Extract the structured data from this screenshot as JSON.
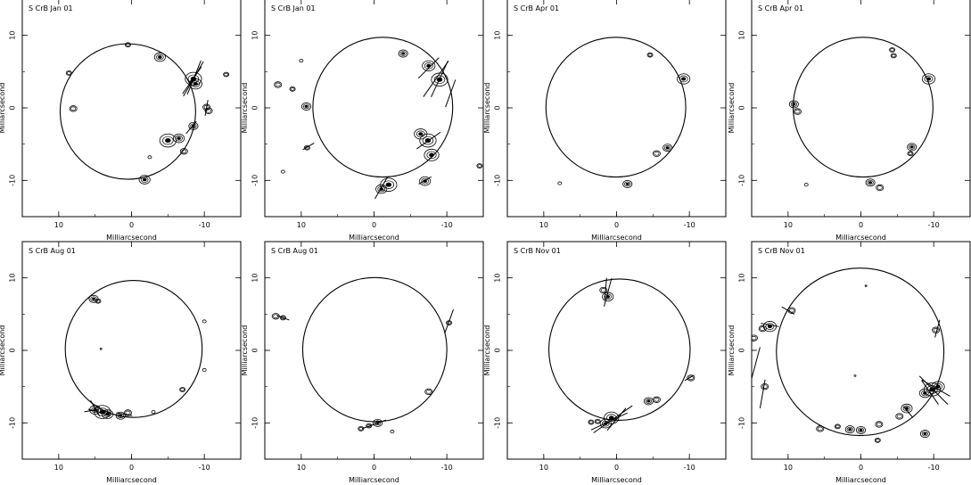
{
  "figure": {
    "layout": "2x4 grid of maser maps",
    "axis_label": "Milliarcsecond",
    "colors": {
      "ink": "#000000",
      "background": "#ffffff"
    }
  },
  "chart_data": [
    {
      "type": "scatter",
      "title": "S CrB Jan 01",
      "xlabel": "Milliarcsecond",
      "ylabel": "Milliarcsecond",
      "xlim": [
        15,
        -15
      ],
      "ylim": [
        -15,
        15
      ],
      "xticks": [
        10,
        0,
        -10
      ],
      "yticks": [
        10,
        0,
        -10
      ],
      "ring": {
        "center": [
          0.5,
          -0.5
        ],
        "radius": 9.3
      },
      "spots": [
        {
          "x": 0.5,
          "y": 8.7,
          "size": 0.3
        },
        {
          "x": 8.6,
          "y": 4.8,
          "size": 0.3
        },
        {
          "x": 8.0,
          "y": -0.1,
          "size": 0.4
        },
        {
          "x": -3.9,
          "y": 7.0,
          "size": 0.6
        },
        {
          "x": -8.5,
          "y": 4.0,
          "size": 0.9
        },
        {
          "x": -8.8,
          "y": 3.3,
          "size": 0.7
        },
        {
          "x": -10.3,
          "y": 0.1,
          "size": 0.4
        },
        {
          "x": -10.6,
          "y": -0.4,
          "size": 0.4
        },
        {
          "x": -8.5,
          "y": -2.5,
          "size": 0.5
        },
        {
          "x": -5.0,
          "y": -4.5,
          "size": 0.9
        },
        {
          "x": -6.5,
          "y": -4.2,
          "size": 0.6
        },
        {
          "x": -7.2,
          "y": -6.0,
          "size": 0.4
        },
        {
          "x": -1.8,
          "y": -9.9,
          "size": 0.6
        },
        {
          "x": -13.0,
          "y": 4.6,
          "size": 0.3
        },
        {
          "x": -2.5,
          "y": -6.8,
          "size": 0.2
        }
      ],
      "vectors": [
        {
          "x": -8.5,
          "y": 4.0,
          "pa": 150,
          "len": 5.5
        },
        {
          "x": -8.6,
          "y": 4.2,
          "pa": 158,
          "len": 5.0
        },
        {
          "x": -8.3,
          "y": 3.8,
          "pa": 145,
          "len": 4.5
        },
        {
          "x": -10.3,
          "y": 0.0,
          "pa": 170,
          "len": 2.2
        },
        {
          "x": -8.2,
          "y": -2.7,
          "pa": 140,
          "len": 2.2
        }
      ]
    },
    {
      "type": "scatter",
      "title": "S CrB Jan 01",
      "xlabel": "Milliarcsecond",
      "ylabel": "Milliarcsecond",
      "xlim": [
        15,
        -15
      ],
      "ylim": [
        -15,
        15
      ],
      "xticks": [
        10,
        0,
        -10
      ],
      "yticks": [
        10,
        0,
        -10
      ],
      "ring": {
        "center": [
          -1.2,
          0.1
        ],
        "radius": 9.6
      },
      "spots": [
        {
          "x": -4.0,
          "y": 7.5,
          "size": 0.5
        },
        {
          "x": -7.5,
          "y": 5.8,
          "size": 0.7
        },
        {
          "x": -9.0,
          "y": 3.9,
          "size": 0.9
        },
        {
          "x": 13.2,
          "y": 3.2,
          "size": 0.4
        },
        {
          "x": 11.2,
          "y": 2.6,
          "size": 0.3
        },
        {
          "x": 9.3,
          "y": 0.2,
          "size": 0.5
        },
        {
          "x": 10.0,
          "y": 6.5,
          "size": 0.2
        },
        {
          "x": -6.4,
          "y": -3.6,
          "size": 0.7
        },
        {
          "x": -7.4,
          "y": -4.5,
          "size": 0.9
        },
        {
          "x": -7.9,
          "y": -6.5,
          "size": 0.8
        },
        {
          "x": -2.0,
          "y": -10.6,
          "size": 0.9
        },
        {
          "x": -1.0,
          "y": -11.2,
          "size": 0.6
        },
        {
          "x": -7.0,
          "y": -10.1,
          "size": 0.6
        },
        {
          "x": -14.5,
          "y": -8.0,
          "size": 0.3
        },
        {
          "x": 9.2,
          "y": -5.5,
          "size": 0.3
        },
        {
          "x": 12.5,
          "y": -8.8,
          "size": 0.2
        }
      ],
      "vectors": [
        {
          "x": -8.5,
          "y": 4.0,
          "pa": 145,
          "len": 6.0
        },
        {
          "x": -9.0,
          "y": 4.0,
          "pa": 155,
          "len": 5.5
        },
        {
          "x": -7.5,
          "y": 5.5,
          "pa": 135,
          "len": 4.0
        },
        {
          "x": -10.5,
          "y": 2.0,
          "pa": 160,
          "len": 4.0
        },
        {
          "x": -7.5,
          "y": -4.5,
          "pa": 125,
          "len": 4.0
        },
        {
          "x": -1.0,
          "y": -11.0,
          "pa": 150,
          "len": 3.5
        },
        {
          "x": -7.0,
          "y": -10.0,
          "pa": 120,
          "len": 2.0
        },
        {
          "x": 9.0,
          "y": -5.3,
          "pa": 120,
          "len": 1.8
        }
      ]
    },
    {
      "type": "scatter",
      "title": "S CrB Apr 01",
      "xlabel": "Milliarcsecond",
      "ylabel": "Milliarcsecond",
      "xlim": [
        15,
        -15
      ],
      "ylim": [
        -15,
        15
      ],
      "xticks": [
        10,
        0,
        -10
      ],
      "yticks": [
        10,
        0,
        -10
      ],
      "ring": {
        "center": [
          0.1,
          0.1
        ],
        "radius": 9.6
      },
      "spots": [
        {
          "x": -4.6,
          "y": 7.3,
          "size": 0.3
        },
        {
          "x": -9.2,
          "y": 4.0,
          "size": 0.7
        },
        {
          "x": -7.0,
          "y": -5.5,
          "size": 0.5
        },
        {
          "x": -5.5,
          "y": -6.3,
          "size": 0.4
        },
        {
          "x": -1.5,
          "y": -10.5,
          "size": 0.5
        },
        {
          "x": 7.8,
          "y": -10.4,
          "size": 0.2
        }
      ],
      "vectors": []
    },
    {
      "type": "scatter",
      "title": "S CrB Apr 01",
      "xlabel": "Milliarcsecond",
      "ylabel": "Milliarcsecond",
      "xlim": [
        15,
        -15
      ],
      "ylim": [
        -15,
        15
      ],
      "xticks": [
        10,
        0,
        -10
      ],
      "yticks": [
        10,
        0,
        -10
      ],
      "ring": {
        "center": [
          -0.3,
          0.1
        ],
        "radius": 9.6
      },
      "spots": [
        {
          "x": -4.3,
          "y": 8.0,
          "size": 0.3
        },
        {
          "x": -4.5,
          "y": 7.2,
          "size": 0.3
        },
        {
          "x": -9.3,
          "y": 4.0,
          "size": 0.7
        },
        {
          "x": 9.2,
          "y": 0.5,
          "size": 0.5
        },
        {
          "x": 8.7,
          "y": -0.5,
          "size": 0.4
        },
        {
          "x": -7.0,
          "y": -5.4,
          "size": 0.5
        },
        {
          "x": -6.8,
          "y": -6.3,
          "size": 0.3
        },
        {
          "x": -1.3,
          "y": -10.3,
          "size": 0.5
        },
        {
          "x": -2.6,
          "y": -11.0,
          "size": 0.4
        },
        {
          "x": 7.5,
          "y": -10.6,
          "size": 0.2
        }
      ],
      "vectors": []
    },
    {
      "type": "scatter",
      "title": "S CrB Aug 01",
      "xlabel": "Milliarcsecond",
      "ylabel": "Milliarcsecond",
      "xlim": [
        15,
        -15
      ],
      "ylim": [
        -15,
        15
      ],
      "xticks": [
        10,
        0,
        -10
      ],
      "yticks": [
        10,
        0,
        -10
      ],
      "ring": {
        "center": [
          -0.3,
          0.2
        ],
        "radius": 9.4
      },
      "spots": [
        {
          "x": 5.2,
          "y": 7.1,
          "size": 0.5
        },
        {
          "x": 4.6,
          "y": 6.8,
          "size": 0.3
        },
        {
          "x": -10.0,
          "y": 4.0,
          "size": 0.2
        },
        {
          "x": -10.0,
          "y": -2.7,
          "size": 0.2
        },
        {
          "x": -7.0,
          "y": -5.4,
          "size": 0.3
        },
        {
          "x": 5.0,
          "y": -8.2,
          "size": 0.6
        },
        {
          "x": 4.0,
          "y": -8.5,
          "size": 0.9
        },
        {
          "x": 3.3,
          "y": -8.8,
          "size": 0.6
        },
        {
          "x": 1.5,
          "y": -9.0,
          "size": 0.5
        },
        {
          "x": 0.5,
          "y": -8.6,
          "size": 0.4
        },
        {
          "x": -3.0,
          "y": -8.5,
          "size": 0.2
        },
        {
          "x": 4.2,
          "y": 0.2,
          "size": 0.1
        }
      ],
      "vectors": [
        {
          "x": 5.5,
          "y": -8.3,
          "pa": 100,
          "len": 2.0
        },
        {
          "x": 4.5,
          "y": -8.5,
          "pa": 75,
          "len": 3.0
        },
        {
          "x": 5.0,
          "y": -8.0,
          "pa": 30,
          "len": 2.5
        },
        {
          "x": 1.0,
          "y": -8.8,
          "pa": 80,
          "len": 2.2
        }
      ]
    },
    {
      "type": "scatter",
      "title": "S CrB Aug 01",
      "xlabel": "Milliarcsecond",
      "ylabel": "Milliarcsecond",
      "xlim": [
        15,
        -15
      ],
      "ylim": [
        -15,
        15
      ],
      "xticks": [
        10,
        0,
        -10
      ],
      "yticks": [
        10,
        0,
        -10
      ],
      "ring": {
        "center": [
          -0.1,
          0.1
        ],
        "radius": 9.9
      },
      "spots": [
        {
          "x": 13.5,
          "y": 4.7,
          "size": 0.4
        },
        {
          "x": 12.5,
          "y": 4.5,
          "size": 0.3
        },
        {
          "x": -10.3,
          "y": 3.8,
          "size": 0.3
        },
        {
          "x": -7.5,
          "y": -5.7,
          "size": 0.4
        },
        {
          "x": -0.5,
          "y": -10.0,
          "size": 0.5
        },
        {
          "x": 0.7,
          "y": -10.4,
          "size": 0.3
        },
        {
          "x": 1.8,
          "y": -10.8,
          "size": 0.3
        },
        {
          "x": -2.5,
          "y": -11.2,
          "size": 0.2
        }
      ],
      "vectors": [
        {
          "x": -10.3,
          "y": 4.0,
          "pa": 160,
          "len": 3.5
        },
        {
          "x": 0.0,
          "y": -10.2,
          "pa": 110,
          "len": 3.5
        },
        {
          "x": 12.5,
          "y": 4.5,
          "pa": 70,
          "len": 1.8
        }
      ]
    },
    {
      "type": "scatter",
      "title": "S CrB Nov 01",
      "xlabel": "Milliarcsecond",
      "ylabel": "Milliarcsecond",
      "xlim": [
        15,
        -15
      ],
      "ylim": [
        -15,
        15
      ],
      "xticks": [
        10,
        0,
        -10
      ],
      "yticks": [
        10,
        0,
        -10
      ],
      "ring": {
        "center": [
          -0.4,
          0.1
        ],
        "radius": 9.7
      },
      "spots": [
        {
          "x": 1.8,
          "y": 8.3,
          "size": 0.4
        },
        {
          "x": 1.2,
          "y": 7.4,
          "size": 0.6
        },
        {
          "x": -4.4,
          "y": -7.0,
          "size": 0.5
        },
        {
          "x": -5.5,
          "y": -6.8,
          "size": 0.4
        },
        {
          "x": -10.2,
          "y": -3.8,
          "size": 0.4
        },
        {
          "x": 0.7,
          "y": -9.3,
          "size": 0.8
        },
        {
          "x": 1.5,
          "y": -10.1,
          "size": 0.6
        },
        {
          "x": 2.6,
          "y": -9.8,
          "size": 0.3
        },
        {
          "x": 3.5,
          "y": -9.9,
          "size": 0.3
        }
      ],
      "vectors": [
        {
          "x": 1.2,
          "y": 8.0,
          "pa": 165,
          "len": 4.0
        },
        {
          "x": 1.5,
          "y": 8.5,
          "pa": 175,
          "len": 3.0
        },
        {
          "x": 0.5,
          "y": -9.5,
          "pa": 125,
          "len": 6.5
        },
        {
          "x": 1.0,
          "y": -9.8,
          "pa": 115,
          "len": 5.5
        },
        {
          "x": 0.0,
          "y": -9.5,
          "pa": 140,
          "len": 4.0
        },
        {
          "x": -10.0,
          "y": -3.8,
          "pa": 120,
          "len": 1.5
        }
      ]
    },
    {
      "type": "scatter",
      "title": "S CrB Nov 01",
      "xlabel": "Milliarcsecond",
      "ylabel": "Milliarcsecond",
      "xlim": [
        15,
        -15
      ],
      "ylim": [
        -15,
        15
      ],
      "xticks": [
        10,
        0,
        -10
      ],
      "yticks": [
        10,
        0,
        -10
      ],
      "ring": {
        "center": [
          0.1,
          -0.2
        ],
        "radius": 11.5
      },
      "spots": [
        {
          "x": 9.5,
          "y": 5.5,
          "size": 0.4
        },
        {
          "x": 12.5,
          "y": 3.3,
          "size": 0.7
        },
        {
          "x": 13.5,
          "y": 3.0,
          "size": 0.4
        },
        {
          "x": 14.7,
          "y": 1.7,
          "size": 0.4
        },
        {
          "x": -10.3,
          "y": 2.8,
          "size": 0.4
        },
        {
          "x": -9.8,
          "y": -5.4,
          "size": 0.9
        },
        {
          "x": -10.6,
          "y": -5.0,
          "size": 0.7
        },
        {
          "x": -8.8,
          "y": -5.9,
          "size": 0.6
        },
        {
          "x": -6.3,
          "y": -8.0,
          "size": 0.6
        },
        {
          "x": -5.3,
          "y": -9.1,
          "size": 0.4
        },
        {
          "x": -2.5,
          "y": -10.2,
          "size": 0.4
        },
        {
          "x": -2.3,
          "y": -12.4,
          "size": 0.3
        },
        {
          "x": 0.0,
          "y": -11.0,
          "size": 0.5
        },
        {
          "x": 1.5,
          "y": -10.9,
          "size": 0.5
        },
        {
          "x": 3.2,
          "y": -10.5,
          "size": 0.3
        },
        {
          "x": 5.6,
          "y": -10.8,
          "size": 0.4
        },
        {
          "x": 13.2,
          "y": -5.0,
          "size": 0.4
        },
        {
          "x": -8.8,
          "y": -11.5,
          "size": 0.5
        },
        {
          "x": -0.7,
          "y": 8.9,
          "size": 0.1
        },
        {
          "x": 0.8,
          "y": -3.5,
          "size": 0.1
        }
      ],
      "vectors": [
        {
          "x": 10.0,
          "y": 5.5,
          "pa": 60,
          "len": 2.0
        },
        {
          "x": 12.5,
          "y": 3.5,
          "pa": 80,
          "len": 2.5
        },
        {
          "x": -10.5,
          "y": 3.0,
          "pa": 165,
          "len": 2.5
        },
        {
          "x": -10.0,
          "y": -5.5,
          "pa": 45,
          "len": 5.5
        },
        {
          "x": -10.3,
          "y": -5.2,
          "pa": 60,
          "len": 4.5
        },
        {
          "x": -9.5,
          "y": -5.8,
          "pa": 35,
          "len": 4.0
        },
        {
          "x": 14.5,
          "y": -2.0,
          "pa": 165,
          "len": 5.0
        },
        {
          "x": 13.5,
          "y": -6.0,
          "pa": 170,
          "len": 4.0
        },
        {
          "x": -6.5,
          "y": -8.5,
          "pa": 40,
          "len": 2.0
        }
      ]
    }
  ]
}
